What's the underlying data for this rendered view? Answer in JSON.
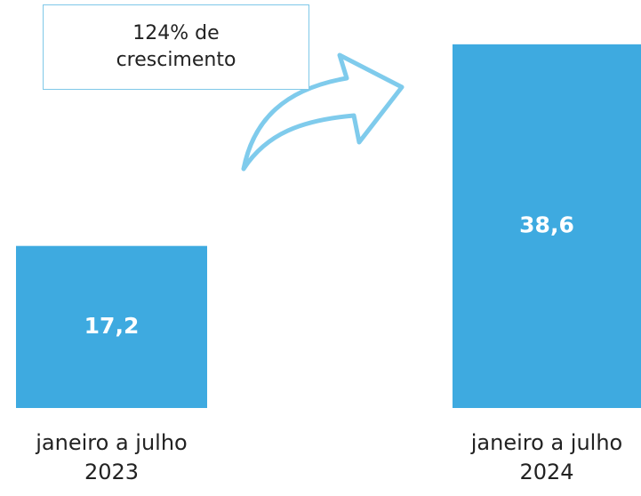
{
  "chart_data": {
    "type": "bar",
    "categories": [
      "janeiro a julho 2023",
      "janeiro a julho 2024"
    ],
    "values": [
      17.2,
      38.6
    ],
    "value_labels": [
      "17,2",
      "38,6"
    ],
    "color": "#3eaae0",
    "annotation": "124% de crescimento"
  }
}
